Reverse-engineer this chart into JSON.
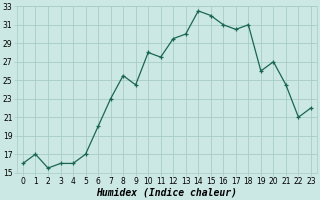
{
  "title": "",
  "xlabel": "Humidex (Indice chaleur)",
  "ylabel": "",
  "x_values": [
    0,
    1,
    2,
    3,
    4,
    5,
    6,
    7,
    8,
    9,
    10,
    11,
    12,
    13,
    14,
    15,
    16,
    17,
    18,
    19,
    20,
    21,
    22,
    23
  ],
  "y_values": [
    16,
    17,
    15.5,
    16,
    16,
    17,
    20,
    23,
    25.5,
    24.5,
    28,
    27.5,
    29.5,
    30,
    32.5,
    32,
    31,
    30.5,
    31,
    26,
    27,
    24.5,
    21,
    22
  ],
  "line_color": "#1a6655",
  "marker": "+",
  "marker_size": 3.5,
  "marker_linewidth": 0.9,
  "line_width": 0.9,
  "bg_color": "#cce8e4",
  "grid_color": "#a8ccc8",
  "ylim": [
    15,
    33
  ],
  "xlim_min": -0.5,
  "xlim_max": 23.5,
  "yticks": [
    15,
    17,
    19,
    21,
    23,
    25,
    27,
    29,
    31,
    33
  ],
  "xticks": [
    0,
    1,
    2,
    3,
    4,
    5,
    6,
    7,
    8,
    9,
    10,
    11,
    12,
    13,
    14,
    15,
    16,
    17,
    18,
    19,
    20,
    21,
    22,
    23
  ],
  "tick_label_fontsize": 5.5,
  "xlabel_fontsize": 7.0
}
